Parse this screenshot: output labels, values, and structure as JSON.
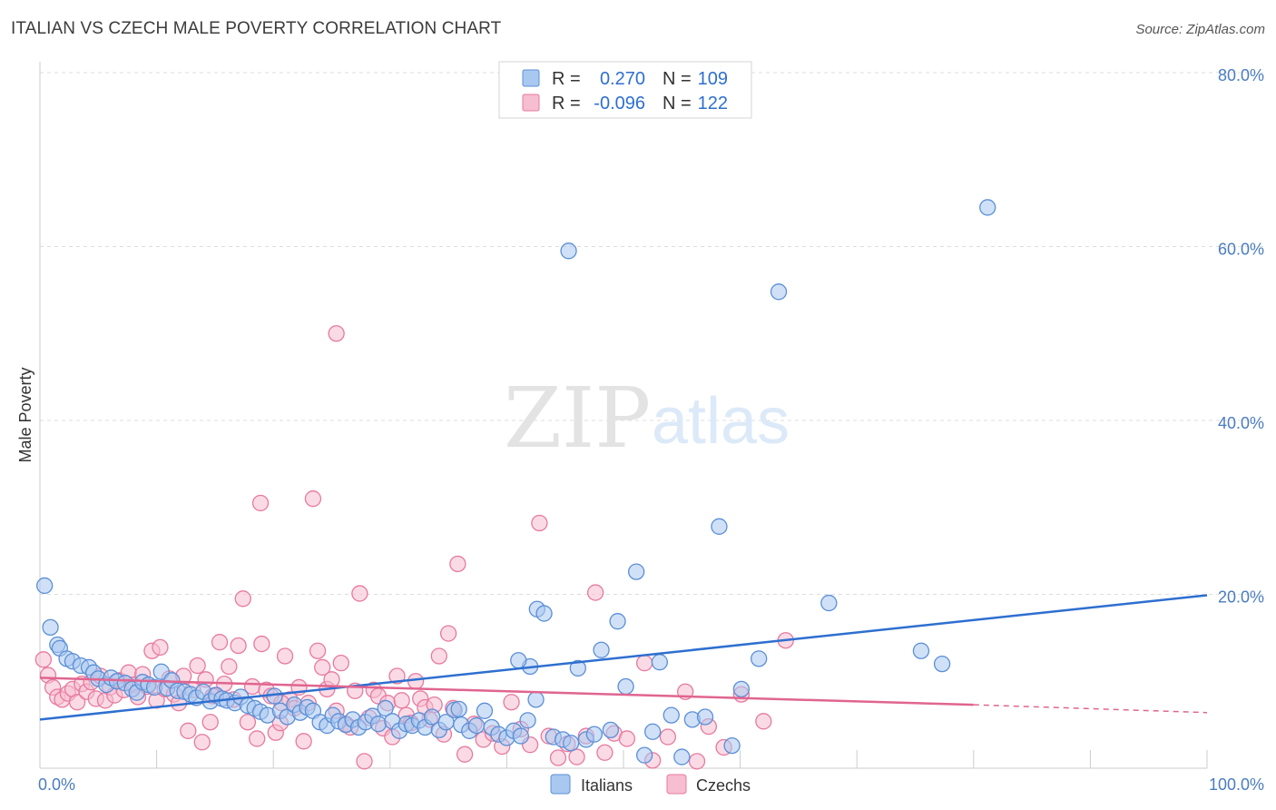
{
  "title": "ITALIAN VS CZECH MALE POVERTY CORRELATION CHART",
  "source": "Source: ZipAtlas.com",
  "watermark": {
    "zip": "ZIP",
    "atlas": "atlas"
  },
  "colors": {
    "italians_fill": "#a9c8f0",
    "italians_stroke": "#5b8fd6",
    "italians_line": "#2e6fd0",
    "czechs_fill": "#f6bed0",
    "czechs_stroke": "#e8799f",
    "czechs_line": "#e06590",
    "tick_text": "#4a7cc0",
    "grid": "#dddddd"
  },
  "legend": {
    "rows": [
      {
        "r_label": "R =",
        "r_value": "0.270",
        "n_label": "N =",
        "n_value": "109"
      },
      {
        "r_label": "R =",
        "r_value": "-0.096",
        "n_label": "N =",
        "n_value": "122"
      }
    ]
  },
  "bottom_legend": [
    "Italians",
    "Czechs"
  ],
  "chart_data": {
    "type": "scatter",
    "title": "ITALIAN VS CZECH MALE POVERTY CORRELATION CHART",
    "xlabel": "",
    "ylabel": "Male Poverty",
    "xlim": [
      0,
      100
    ],
    "ylim": [
      0,
      80
    ],
    "x_tick_labels": [
      "0.0%",
      "100.0%"
    ],
    "y_ticks": [
      20,
      40,
      60,
      80
    ],
    "y_tick_labels": [
      "20.0%",
      "40.0%",
      "60.0%",
      "80.0%"
    ],
    "grid": true,
    "legend_position": "top-center",
    "series": [
      {
        "name": "Italians",
        "r": 0.27,
        "n": 109,
        "trend": {
          "x": [
            0,
            100
          ],
          "y": [
            5.6,
            19.9
          ]
        },
        "points": [
          [
            0.4,
            21.0
          ],
          [
            0.9,
            16.2
          ],
          [
            1.5,
            14.2
          ],
          [
            1.7,
            13.8
          ],
          [
            2.3,
            12.6
          ],
          [
            2.8,
            12.3
          ],
          [
            3.5,
            11.8
          ],
          [
            4.2,
            11.6
          ],
          [
            4.6,
            11.0
          ],
          [
            5.0,
            10.3
          ],
          [
            5.7,
            9.6
          ],
          [
            6.1,
            10.4
          ],
          [
            6.6,
            10.0
          ],
          [
            7.3,
            9.8
          ],
          [
            7.9,
            9.1
          ],
          [
            8.3,
            8.7
          ],
          [
            8.8,
            9.9
          ],
          [
            9.3,
            9.6
          ],
          [
            9.8,
            9.3
          ],
          [
            10.4,
            11.1
          ],
          [
            10.9,
            9.2
          ],
          [
            11.3,
            10.1
          ],
          [
            11.8,
            8.9
          ],
          [
            12.4,
            8.8
          ],
          [
            12.9,
            8.5
          ],
          [
            13.4,
            8.1
          ],
          [
            14.0,
            8.8
          ],
          [
            14.6,
            7.7
          ],
          [
            15.1,
            8.4
          ],
          [
            15.6,
            8.0
          ],
          [
            16.0,
            7.8
          ],
          [
            16.7,
            7.5
          ],
          [
            17.2,
            8.2
          ],
          [
            17.8,
            7.2
          ],
          [
            18.4,
            6.9
          ],
          [
            18.9,
            6.5
          ],
          [
            19.5,
            6.1
          ],
          [
            20.1,
            8.3
          ],
          [
            20.6,
            6.6
          ],
          [
            21.2,
            5.9
          ],
          [
            21.8,
            7.3
          ],
          [
            22.3,
            6.4
          ],
          [
            22.9,
            7.0
          ],
          [
            23.4,
            6.6
          ],
          [
            24.0,
            5.3
          ],
          [
            24.6,
            4.9
          ],
          [
            25.1,
            6.1
          ],
          [
            25.6,
            5.4
          ],
          [
            26.2,
            5.0
          ],
          [
            26.8,
            5.6
          ],
          [
            27.3,
            4.7
          ],
          [
            27.9,
            5.3
          ],
          [
            28.5,
            6.0
          ],
          [
            29.0,
            5.1
          ],
          [
            29.6,
            6.9
          ],
          [
            30.2,
            5.4
          ],
          [
            30.8,
            4.3
          ],
          [
            31.4,
            5.1
          ],
          [
            31.9,
            4.9
          ],
          [
            32.5,
            5.5
          ],
          [
            33.0,
            4.7
          ],
          [
            33.6,
            5.9
          ],
          [
            34.2,
            4.4
          ],
          [
            34.8,
            5.3
          ],
          [
            35.5,
            6.7
          ],
          [
            36.1,
            5.0
          ],
          [
            36.8,
            4.3
          ],
          [
            37.4,
            4.9
          ],
          [
            38.1,
            6.6
          ],
          [
            38.7,
            4.7
          ],
          [
            39.3,
            3.9
          ],
          [
            40.0,
            3.5
          ],
          [
            40.6,
            4.3
          ],
          [
            41.2,
            3.7
          ],
          [
            41.8,
            5.5
          ],
          [
            42.5,
            7.9
          ],
          [
            42.0,
            11.7
          ],
          [
            41.0,
            12.4
          ],
          [
            42.6,
            18.3
          ],
          [
            43.2,
            17.8
          ],
          [
            44.0,
            3.6
          ],
          [
            44.8,
            3.3
          ],
          [
            45.5,
            2.9
          ],
          [
            46.1,
            11.5
          ],
          [
            46.8,
            3.3
          ],
          [
            47.5,
            3.9
          ],
          [
            48.1,
            13.6
          ],
          [
            48.9,
            4.4
          ],
          [
            49.5,
            16.9
          ],
          [
            50.2,
            9.4
          ],
          [
            51.1,
            22.6
          ],
          [
            51.8,
            1.5
          ],
          [
            52.5,
            4.2
          ],
          [
            53.1,
            12.2
          ],
          [
            54.1,
            6.1
          ],
          [
            55.0,
            1.3
          ],
          [
            55.9,
            5.6
          ],
          [
            57.0,
            5.9
          ],
          [
            58.2,
            27.8
          ],
          [
            59.3,
            2.6
          ],
          [
            60.1,
            9.1
          ],
          [
            61.6,
            12.6
          ],
          [
            63.3,
            54.8
          ],
          [
            67.6,
            19.0
          ],
          [
            75.5,
            13.5
          ],
          [
            77.3,
            12.0
          ],
          [
            81.2,
            64.5
          ],
          [
            45.3,
            59.5
          ],
          [
            35.9,
            6.8
          ]
        ]
      },
      {
        "name": "Czechs",
        "r": -0.096,
        "n": 122,
        "trend": {
          "x": [
            0,
            80
          ],
          "y": [
            10.4,
            7.3
          ]
        },
        "trend_extension": {
          "x": [
            80,
            100
          ],
          "y": [
            7.3,
            6.4
          ]
        },
        "points": [
          [
            0.3,
            12.5
          ],
          [
            0.7,
            10.7
          ],
          [
            1.1,
            9.3
          ],
          [
            1.5,
            8.2
          ],
          [
            1.9,
            7.9
          ],
          [
            2.4,
            8.6
          ],
          [
            2.8,
            9.1
          ],
          [
            3.2,
            7.6
          ],
          [
            3.6,
            9.7
          ],
          [
            4.0,
            8.8
          ],
          [
            4.4,
            9.9
          ],
          [
            4.8,
            8.0
          ],
          [
            5.2,
            10.6
          ],
          [
            5.6,
            7.8
          ],
          [
            6.0,
            9.3
          ],
          [
            6.4,
            8.4
          ],
          [
            6.8,
            10.1
          ],
          [
            7.2,
            9.0
          ],
          [
            7.6,
            11.0
          ],
          [
            8.0,
            9.6
          ],
          [
            8.4,
            8.2
          ],
          [
            8.8,
            10.8
          ],
          [
            9.2,
            9.4
          ],
          [
            9.6,
            13.5
          ],
          [
            10.0,
            7.8
          ],
          [
            10.3,
            13.9
          ],
          [
            10.7,
            9.1
          ],
          [
            11.1,
            10.3
          ],
          [
            11.5,
            8.5
          ],
          [
            11.9,
            7.5
          ],
          [
            12.3,
            10.6
          ],
          [
            12.7,
            4.3
          ],
          [
            13.1,
            9.0
          ],
          [
            13.5,
            11.8
          ],
          [
            13.9,
            3.0
          ],
          [
            14.2,
            10.2
          ],
          [
            14.6,
            5.3
          ],
          [
            15.0,
            8.4
          ],
          [
            15.4,
            14.5
          ],
          [
            15.8,
            9.7
          ],
          [
            16.2,
            11.7
          ],
          [
            16.6,
            7.9
          ],
          [
            17.0,
            14.1
          ],
          [
            17.4,
            19.5
          ],
          [
            17.8,
            5.3
          ],
          [
            18.2,
            9.4
          ],
          [
            18.6,
            3.4
          ],
          [
            19.0,
            14.3
          ],
          [
            19.4,
            9.0
          ],
          [
            19.8,
            8.3
          ],
          [
            20.2,
            4.1
          ],
          [
            20.6,
            5.2
          ],
          [
            21.0,
            12.9
          ],
          [
            21.4,
            7.9
          ],
          [
            21.8,
            6.9
          ],
          [
            22.2,
            9.3
          ],
          [
            22.6,
            3.1
          ],
          [
            23.0,
            7.5
          ],
          [
            23.4,
            31.0
          ],
          [
            23.8,
            13.5
          ],
          [
            24.2,
            11.6
          ],
          [
            24.6,
            9.1
          ],
          [
            25.0,
            10.2
          ],
          [
            25.4,
            6.6
          ],
          [
            25.8,
            12.1
          ],
          [
            26.2,
            5.1
          ],
          [
            26.6,
            4.7
          ],
          [
            27.0,
            8.9
          ],
          [
            27.4,
            20.1
          ],
          [
            27.8,
            0.8
          ],
          [
            28.2,
            5.8
          ],
          [
            28.6,
            9.0
          ],
          [
            29.0,
            8.3
          ],
          [
            29.4,
            4.6
          ],
          [
            29.8,
            7.5
          ],
          [
            30.2,
            3.6
          ],
          [
            30.6,
            10.6
          ],
          [
            31.0,
            7.8
          ],
          [
            31.4,
            6.1
          ],
          [
            31.8,
            5.2
          ],
          [
            32.2,
            10.0
          ],
          [
            32.6,
            8.0
          ],
          [
            33.0,
            7.0
          ],
          [
            33.4,
            5.6
          ],
          [
            33.8,
            7.3
          ],
          [
            34.2,
            12.9
          ],
          [
            34.6,
            3.9
          ],
          [
            35.0,
            15.5
          ],
          [
            35.4,
            6.9
          ],
          [
            35.8,
            23.5
          ],
          [
            36.4,
            1.6
          ],
          [
            37.2,
            5.1
          ],
          [
            38.0,
            3.3
          ],
          [
            38.8,
            4.0
          ],
          [
            39.6,
            2.5
          ],
          [
            40.4,
            7.6
          ],
          [
            41.2,
            4.5
          ],
          [
            42.0,
            2.7
          ],
          [
            42.8,
            28.2
          ],
          [
            43.6,
            3.7
          ],
          [
            44.4,
            1.2
          ],
          [
            45.2,
            2.8
          ],
          [
            46.0,
            1.3
          ],
          [
            46.8,
            3.7
          ],
          [
            47.6,
            20.2
          ],
          [
            48.4,
            1.8
          ],
          [
            49.2,
            4.0
          ],
          [
            50.3,
            3.4
          ],
          [
            51.8,
            12.1
          ],
          [
            52.5,
            0.9
          ],
          [
            53.8,
            3.6
          ],
          [
            55.3,
            8.8
          ],
          [
            56.3,
            0.8
          ],
          [
            57.3,
            4.8
          ],
          [
            58.6,
            2.4
          ],
          [
            60.1,
            8.5
          ],
          [
            62.0,
            5.4
          ],
          [
            63.9,
            14.7
          ],
          [
            18.9,
            30.5
          ],
          [
            25.4,
            50.0
          ],
          [
            14.8,
            8.3
          ],
          [
            20.7,
            7.5
          ]
        ]
      }
    ]
  }
}
